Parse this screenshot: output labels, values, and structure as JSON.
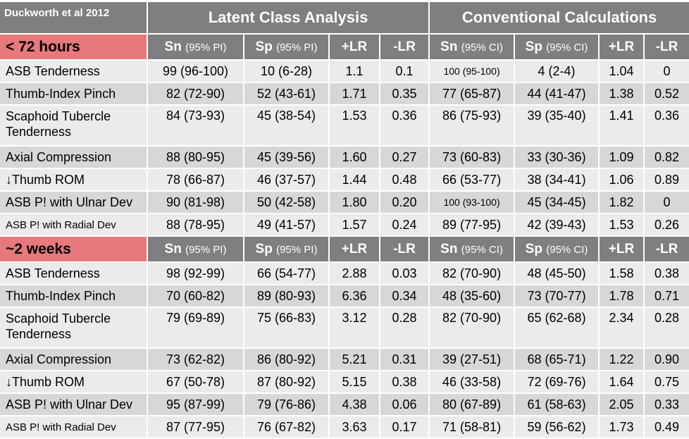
{
  "title": "Duckworth et al 2012",
  "groups": {
    "lca": "Latent Class Analysis",
    "conv": "Conventional Calculations"
  },
  "headers": {
    "sn": "Sn",
    "sn_pi": "(95% PI)",
    "sp": "Sp",
    "sp_pi": "(95% PI)",
    "plr": "+LR",
    "nlr": "-LR",
    "sn_ci": "(95% CI)",
    "sp_ci": "(95% CI)"
  },
  "sections": [
    {
      "label": "< 72 hours",
      "rows": [
        [
          "ASB Tenderness",
          "99 (96-100)",
          "10 (6-28)",
          "1.1",
          "0.1",
          "100 (95-100)",
          "4 (2-4)",
          "1.04",
          "0"
        ],
        [
          "Thumb-Index Pinch",
          "82 (72-90)",
          "52 (43-61)",
          "1.71",
          "0.35",
          "77 (65-87)",
          "44 (41-47)",
          "1.38",
          "0.52"
        ],
        [
          "Scaphoid Tubercle Tenderness",
          "84 (73-93)",
          "45 (38-54)",
          "1.53",
          "0.36",
          "86 (75-93)",
          "39 (35-40)",
          "1.41",
          "0.36"
        ],
        [
          "Axial Compression",
          "88 (80-95)",
          "45 (39-56)",
          "1.60",
          "0.27",
          "73 (60-83)",
          "33 (30-36)",
          "1.09",
          "0.82"
        ],
        [
          "↓Thumb ROM",
          "78 (66-87)",
          "46 (37-57)",
          "1.44",
          "0.48",
          "66 (53-77)",
          "38 (34-41)",
          "1.06",
          "0.89"
        ],
        [
          "ASB P! with Ulnar Dev",
          "90 (81-98)",
          "50 (42-58)",
          "1.80",
          "0.20",
          "100 (93-100)",
          "45 (34-45)",
          "1.82",
          "0"
        ],
        [
          "ASB P! with Radial Dev",
          "88 (78-95)",
          "49 (41-57)",
          "1.57",
          "0.24",
          "89 (77-95)",
          "42 (39-43)",
          "1.53",
          "0.26"
        ]
      ]
    },
    {
      "label": "~2 weeks",
      "rows": [
        [
          "ASB Tenderness",
          "98 (92-99)",
          "66 (54-77)",
          "2.88",
          "0.03",
          "82 (70-90)",
          "48 (45-50)",
          "1.58",
          "0.38"
        ],
        [
          "Thumb-Index Pinch",
          "70 (60-82)",
          "89 (80-93)",
          "6.36",
          "0.34",
          "48 (35-60)",
          "73 (70-77)",
          "1.78",
          "0.71"
        ],
        [
          "Scaphoid Tubercle Tenderness",
          "79 (69-89)",
          "75 (66-83)",
          "3.12",
          "0.28",
          "82 (70-90)",
          "65 (62-68)",
          "2.34",
          "0.28"
        ],
        [
          "Axial Compression",
          "73 (62-82)",
          "86 (80-92)",
          "5.21",
          "0.31",
          "39 (27-51)",
          "68 (65-71)",
          "1.22",
          "0.90"
        ],
        [
          "↓Thumb ROM",
          "67 (50-78)",
          "87 (80-92)",
          "5.15",
          "0.38",
          "46 (33-58)",
          "72 (69-76)",
          "1.64",
          "0.75"
        ],
        [
          "ASB P! with Ulnar Dev",
          "95 (87-99)",
          "79 (76-86)",
          "4.38",
          "0.06",
          "80 (67-89)",
          "61 (58-63)",
          "2.05",
          "0.33"
        ],
        [
          "ASB P! with Radial Dev",
          "87 (77-95)",
          "76 (67-82)",
          "3.63",
          "0.17",
          "71 (58-81)",
          "59 (56-62)",
          "1.73",
          "0.49"
        ]
      ]
    }
  ],
  "colors": {
    "header_gray": "#7f7f7f",
    "section_pink": "#e7787b",
    "row_light": "#ebebeb",
    "row_dark": "#d7d7d7"
  }
}
